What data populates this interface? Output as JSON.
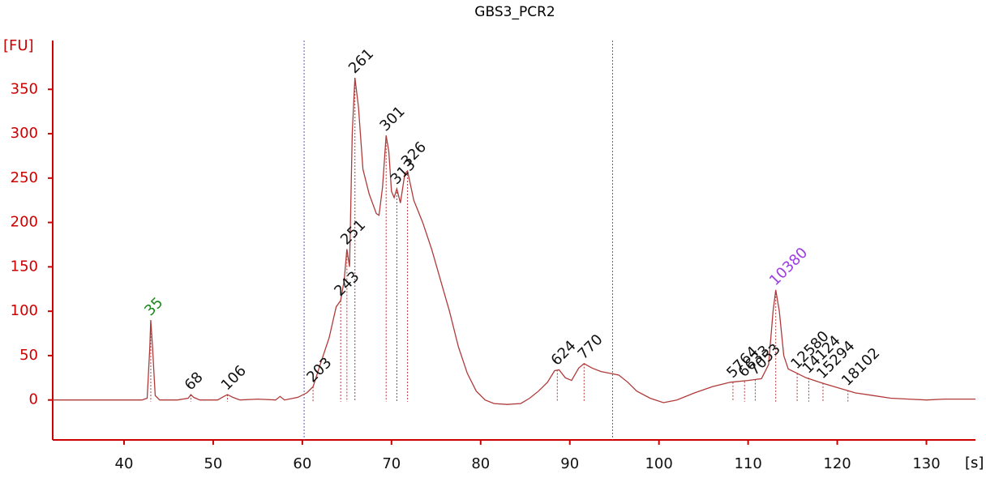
{
  "chart_data": {
    "type": "line",
    "title": "GBS3_PCR2",
    "y_label": "[FU]",
    "x_label": "[s]",
    "color": "#b03a3a",
    "axis_color": "#cc0000",
    "marker_color": "#5a5acc",
    "grid": false,
    "xlim": [
      32,
      135.5
    ],
    "ylim": [
      -45,
      405
    ],
    "xticks": [
      40,
      50,
      60,
      70,
      80,
      90,
      100,
      110,
      120,
      130
    ],
    "yticks": [
      0,
      50,
      100,
      150,
      200,
      250,
      300,
      350
    ],
    "markers": [
      60.2,
      94.8
    ],
    "x": [
      32,
      35,
      38,
      42,
      42.6,
      42.9,
      43.0,
      43.2,
      43.5,
      44,
      46,
      47.2,
      47.5,
      47.8,
      48.5,
      50.5,
      51.2,
      51.6,
      52.2,
      53,
      55,
      57,
      57.5,
      58,
      59.5,
      60.5,
      61.2,
      62,
      63,
      63.8,
      64.3,
      64.7,
      65.0,
      65.3,
      65.6,
      65.9,
      66.3,
      66.8,
      67.5,
      68.3,
      68.6,
      69.0,
      69.4,
      69.7,
      70.0,
      70.3,
      70.6,
      71.0,
      71.5,
      71.8,
      72.5,
      73.5,
      74.5,
      75.5,
      76.5,
      77.5,
      78.5,
      79.5,
      80.5,
      81.5,
      83,
      84.5,
      85.5,
      86.5,
      87.5,
      88.3,
      88.8,
      89.5,
      90.2,
      91,
      91.6,
      92.5,
      93.5,
      94.5,
      95.5,
      96.5,
      97.5,
      99,
      100.5,
      102,
      104,
      106,
      108,
      110,
      111.5,
      112.3,
      112.8,
      113.1,
      113.5,
      114,
      114.5,
      115.5,
      116.5,
      118,
      120,
      122,
      124,
      126,
      128,
      130,
      132,
      135.5
    ],
    "values": [
      0,
      0,
      0,
      0,
      2,
      60,
      90,
      60,
      5,
      0,
      0,
      2,
      6,
      3,
      0,
      0,
      4,
      6,
      3,
      0,
      1,
      0,
      4,
      0,
      3,
      8,
      15,
      40,
      70,
      105,
      112,
      135,
      170,
      150,
      300,
      363,
      330,
      260,
      232,
      210,
      208,
      240,
      298,
      280,
      235,
      228,
      238,
      222,
      255,
      258,
      225,
      200,
      170,
      135,
      100,
      60,
      30,
      10,
      0,
      -4,
      -5,
      -4,
      2,
      10,
      20,
      33,
      34,
      25,
      22,
      36,
      41,
      36,
      32,
      30,
      28,
      20,
      10,
      2,
      -3,
      0,
      8,
      15,
      20,
      22,
      24,
      40,
      100,
      124,
      100,
      50,
      35,
      30,
      25,
      20,
      14,
      8,
      5,
      2,
      1,
      0,
      1,
      1
    ],
    "peaks": [
      {
        "label": "35",
        "x": 43.0,
        "y": 90,
        "color": "#1a8a1a"
      },
      {
        "label": "68",
        "x": 47.5,
        "y": 6,
        "color": "#111111"
      },
      {
        "label": "106",
        "x": 51.6,
        "y": 6,
        "color": "#111111"
      },
      {
        "label": "203",
        "x": 61.2,
        "y": 15,
        "color": "#111111"
      },
      {
        "label": "243",
        "x": 64.3,
        "y": 112,
        "color": "#111111"
      },
      {
        "label": "251",
        "x": 65.0,
        "y": 170,
        "color": "#111111"
      },
      {
        "label": "261",
        "x": 65.9,
        "y": 363,
        "color": "#111111"
      },
      {
        "label": "301",
        "x": 69.4,
        "y": 298,
        "color": "#111111"
      },
      {
        "label": "313",
        "x": 70.6,
        "y": 238,
        "color": "#111111"
      },
      {
        "label": "326",
        "x": 71.8,
        "y": 258,
        "color": "#111111"
      },
      {
        "label": "624",
        "x": 88.6,
        "y": 34,
        "color": "#111111"
      },
      {
        "label": "770",
        "x": 91.6,
        "y": 41,
        "color": "#111111"
      },
      {
        "label": "5764",
        "x": 108.3,
        "y": 20,
        "color": "#111111"
      },
      {
        "label": "6633",
        "x": 109.6,
        "y": 21,
        "color": "#111111"
      },
      {
        "label": "7053",
        "x": 110.8,
        "y": 23,
        "color": "#111111"
      },
      {
        "label": "10380",
        "x": 113.1,
        "y": 124,
        "color": "#9b3de0"
      },
      {
        "label": "12580",
        "x": 115.5,
        "y": 30,
        "color": "#111111"
      },
      {
        "label": "14124",
        "x": 116.8,
        "y": 25,
        "color": "#111111"
      },
      {
        "label": "15294",
        "x": 118.4,
        "y": 19,
        "color": "#111111"
      },
      {
        "label": "18102",
        "x": 121.2,
        "y": 11,
        "color": "#111111"
      }
    ]
  }
}
